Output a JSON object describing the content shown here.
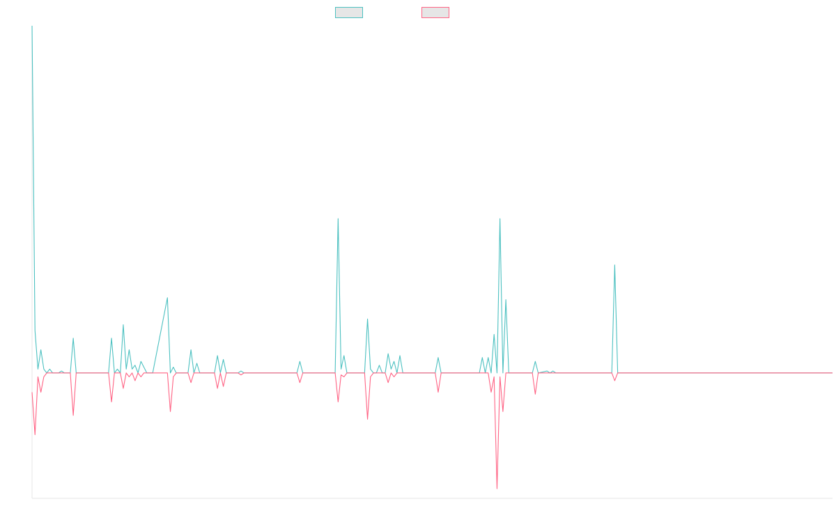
{
  "chart_data": {
    "type": "line",
    "title": "",
    "xlabel": "",
    "ylabel": "",
    "grid": false,
    "legend_position": "top-center",
    "x_range": [
      0,
      272
    ],
    "ylim": [
      -65,
      180
    ],
    "series": [
      {
        "color": "#4bc0c0",
        "fill": "#e6e6e6",
        "points": [
          [
            0,
            180
          ],
          [
            1,
            22
          ],
          [
            2,
            2
          ],
          [
            3,
            12
          ],
          [
            4,
            2
          ],
          [
            5,
            0
          ],
          [
            6,
            2
          ],
          [
            7,
            0
          ],
          [
            9,
            0
          ],
          [
            10,
            1
          ],
          [
            11,
            0
          ],
          [
            13,
            0
          ],
          [
            14,
            18
          ],
          [
            15,
            0
          ],
          [
            26,
            0
          ],
          [
            27,
            18
          ],
          [
            28,
            0
          ],
          [
            29,
            2
          ],
          [
            30,
            0
          ],
          [
            31,
            25
          ],
          [
            32,
            2
          ],
          [
            33,
            12
          ],
          [
            34,
            2
          ],
          [
            35,
            4
          ],
          [
            36,
            0
          ],
          [
            37,
            6
          ],
          [
            38,
            3
          ],
          [
            39,
            0
          ],
          [
            41,
            0
          ],
          [
            46,
            39
          ],
          [
            47,
            0
          ],
          [
            48,
            3
          ],
          [
            49,
            0
          ],
          [
            53,
            0
          ],
          [
            54,
            12
          ],
          [
            55,
            0
          ],
          [
            56,
            5
          ],
          [
            57,
            0
          ],
          [
            62,
            0
          ],
          [
            63,
            9
          ],
          [
            64,
            0
          ],
          [
            65,
            7
          ],
          [
            66,
            0
          ],
          [
            70,
            0
          ],
          [
            71,
            1
          ],
          [
            72,
            0
          ],
          [
            90,
            0
          ],
          [
            91,
            6
          ],
          [
            92,
            0
          ],
          [
            103,
            0
          ],
          [
            104,
            80
          ],
          [
            105,
            2
          ],
          [
            106,
            9
          ],
          [
            107,
            0
          ],
          [
            113,
            0
          ],
          [
            114,
            28
          ],
          [
            115,
            2
          ],
          [
            116,
            0
          ],
          [
            117,
            0
          ],
          [
            118,
            4
          ],
          [
            119,
            0
          ],
          [
            120,
            0
          ],
          [
            121,
            10
          ],
          [
            122,
            2
          ],
          [
            123,
            6
          ],
          [
            124,
            0
          ],
          [
            125,
            9
          ],
          [
            126,
            0
          ],
          [
            137,
            0
          ],
          [
            138,
            8
          ],
          [
            139,
            0
          ],
          [
            152,
            0
          ],
          [
            153,
            8
          ],
          [
            154,
            0
          ],
          [
            155,
            8
          ],
          [
            156,
            0
          ],
          [
            157,
            20
          ],
          [
            158,
            0
          ],
          [
            159,
            80
          ],
          [
            160,
            0
          ],
          [
            161,
            38
          ],
          [
            162,
            0
          ],
          [
            170,
            0
          ],
          [
            171,
            6
          ],
          [
            172,
            0
          ],
          [
            175,
            1
          ],
          [
            176,
            0
          ],
          [
            177,
            1
          ],
          [
            178,
            0
          ],
          [
            197,
            0
          ],
          [
            198,
            56
          ],
          [
            199,
            0
          ],
          [
            272,
            0
          ]
        ]
      },
      {
        "color": "#ff6384",
        "fill": "#e6e6e6",
        "points": [
          [
            0,
            -10
          ],
          [
            1,
            -32
          ],
          [
            2,
            -2
          ],
          [
            3,
            -10
          ],
          [
            4,
            -2
          ],
          [
            5,
            0
          ],
          [
            13,
            0
          ],
          [
            14,
            -22
          ],
          [
            15,
            0
          ],
          [
            26,
            0
          ],
          [
            27,
            -15
          ],
          [
            28,
            0
          ],
          [
            30,
            0
          ],
          [
            31,
            -8
          ],
          [
            32,
            0
          ],
          [
            33,
            -2
          ],
          [
            34,
            0
          ],
          [
            35,
            -4
          ],
          [
            36,
            0
          ],
          [
            37,
            -2
          ],
          [
            38,
            0
          ],
          [
            46,
            0
          ],
          [
            47,
            -20
          ],
          [
            48,
            -2
          ],
          [
            49,
            0
          ],
          [
            53,
            0
          ],
          [
            54,
            -5
          ],
          [
            55,
            0
          ],
          [
            62,
            0
          ],
          [
            63,
            -8
          ],
          [
            64,
            0
          ],
          [
            65,
            -7
          ],
          [
            66,
            0
          ],
          [
            70,
            0
          ],
          [
            71,
            -1
          ],
          [
            72,
            0
          ],
          [
            90,
            0
          ],
          [
            91,
            -5
          ],
          [
            92,
            0
          ],
          [
            103,
            0
          ],
          [
            104,
            -15
          ],
          [
            105,
            -1
          ],
          [
            106,
            -2
          ],
          [
            107,
            0
          ],
          [
            113,
            0
          ],
          [
            114,
            -24
          ],
          [
            115,
            -2
          ],
          [
            116,
            0
          ],
          [
            120,
            0
          ],
          [
            121,
            -5
          ],
          [
            122,
            0
          ],
          [
            123,
            -2
          ],
          [
            124,
            0
          ],
          [
            137,
            0
          ],
          [
            138,
            -10
          ],
          [
            139,
            0
          ],
          [
            155,
            0
          ],
          [
            156,
            -10
          ],
          [
            157,
            -2
          ],
          [
            158,
            -60
          ],
          [
            159,
            -2
          ],
          [
            160,
            -20
          ],
          [
            161,
            0
          ],
          [
            170,
            0
          ],
          [
            171,
            -11
          ],
          [
            172,
            0
          ],
          [
            197,
            0
          ],
          [
            198,
            -4
          ],
          [
            199,
            0
          ],
          [
            272,
            0
          ]
        ]
      }
    ]
  }
}
